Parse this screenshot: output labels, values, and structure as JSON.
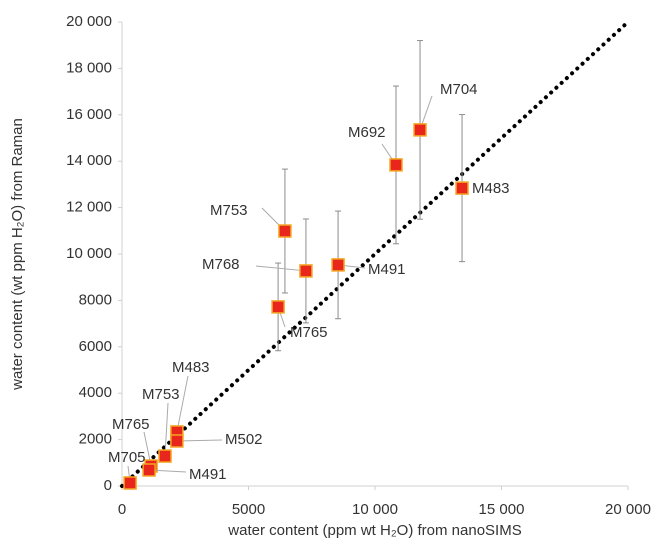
{
  "chart_data": {
    "type": "scatter",
    "x_label": "water content (ppm wt H₂O)  from nanoSIMS",
    "y_label": "water content (wt ppm H₂O) from Raman",
    "xlim": [
      0,
      20000
    ],
    "ylim": [
      0,
      20000
    ],
    "xticks": [
      0,
      5000,
      {
        "value": 10000,
        "label": "10 000"
      },
      {
        "value": 15000,
        "label": "15 000"
      },
      {
        "value": 20000,
        "label": "20 000"
      }
    ],
    "yticks": [
      0,
      2000,
      4000,
      6000,
      8000,
      {
        "value": 10000,
        "label": "10 000"
      },
      {
        "value": 12000,
        "label": "12 000"
      },
      {
        "value": 14000,
        "label": "14 000"
      },
      {
        "value": 16000,
        "label": "16 000"
      },
      {
        "value": 18000,
        "label": "18 000"
      },
      {
        "value": 20000,
        "label": "20 000"
      }
    ],
    "identity_line": true,
    "color": "#e8261c",
    "edge_color": "#f5a623",
    "error_color": "#8c8c8c",
    "labels": [
      "M704",
      "M692",
      "M483",
      "M753",
      "M768",
      "M491",
      "M765",
      "M483",
      "M502",
      "M753",
      "M765",
      "M491",
      "M705"
    ],
    "x": [
      11780,
      10830,
      13440,
      6440,
      7270,
      8540,
      6170,
      2170,
      2170,
      1700,
      1150,
      1070,
      320
    ],
    "values": [
      15350,
      13840,
      12840,
      10990,
      9270,
      9530,
      7720,
      2330,
      1940,
      1290,
      860,
      690,
      130
    ],
    "errors": [
      3850,
      3400,
      3170,
      2670,
      2240,
      2320,
      1890,
      null,
      null,
      null,
      null,
      null,
      null
    ]
  }
}
